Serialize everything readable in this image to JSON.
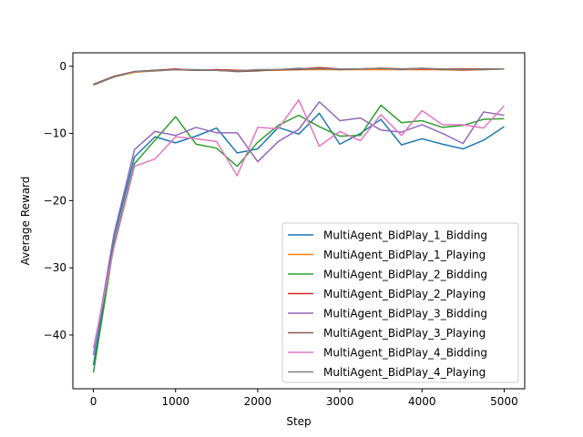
{
  "chart_data": {
    "type": "line",
    "title": "",
    "xlabel": "Step",
    "ylabel": "Average Reward",
    "xlim": [
      -250,
      5250
    ],
    "ylim": [
      -48,
      2
    ],
    "xticks": [
      0,
      1000,
      2000,
      3000,
      4000,
      5000
    ],
    "yticks": [
      -40,
      -30,
      -20,
      -10,
      0
    ],
    "grid": false,
    "legend_position": "lower right",
    "x": [
      0,
      250,
      500,
      750,
      1000,
      1250,
      1500,
      1750,
      2000,
      2250,
      2500,
      2750,
      3000,
      3250,
      3500,
      3750,
      4000,
      4250,
      4500,
      4750,
      5000
    ],
    "series": [
      {
        "name": "MultiAgent_BidPlay_1_Bidding",
        "color": "#1f77b4",
        "values": [
          -44.5,
          -25.5,
          -13.5,
          -10.5,
          -11.4,
          -10.4,
          -9.2,
          -12.9,
          -12.3,
          -9.1,
          -10.1,
          -7.0,
          -11.6,
          -10.0,
          -7.9,
          -11.7,
          -10.8,
          -11.6,
          -12.3,
          -11.0,
          -9.0
        ]
      },
      {
        "name": "MultiAgent_BidPlay_1_Playing",
        "color": "#ff7f0e",
        "values": [
          -2.8,
          -1.6,
          -0.9,
          -0.7,
          -0.5,
          -0.6,
          -0.6,
          -0.7,
          -0.6,
          -0.6,
          -0.5,
          -0.5,
          -0.5,
          -0.5,
          -0.5,
          -0.5,
          -0.5,
          -0.5,
          -0.6,
          -0.5,
          -0.4
        ]
      },
      {
        "name": "MultiAgent_BidPlay_2_Bidding",
        "color": "#2ca02c",
        "values": [
          -45.6,
          -26.5,
          -14.5,
          -11.0,
          -7.5,
          -11.6,
          -12.2,
          -14.9,
          -11.3,
          -8.8,
          -7.3,
          -9.0,
          -10.4,
          -10.3,
          -5.8,
          -8.4,
          -8.1,
          -9.1,
          -8.8,
          -7.9,
          -7.8
        ]
      },
      {
        "name": "MultiAgent_BidPlay_2_Playing",
        "color": "#d62728",
        "values": [
          -2.7,
          -1.5,
          -0.8,
          -0.6,
          -0.4,
          -0.6,
          -0.5,
          -0.6,
          -0.6,
          -0.5,
          -0.4,
          -0.2,
          -0.4,
          -0.4,
          -0.3,
          -0.4,
          -0.4,
          -0.4,
          -0.4,
          -0.4,
          -0.4
        ]
      },
      {
        "name": "MultiAgent_BidPlay_3_Bidding",
        "color": "#9467bd",
        "values": [
          -43.0,
          -25.0,
          -12.4,
          -9.7,
          -10.3,
          -9.1,
          -9.9,
          -9.9,
          -14.2,
          -11.2,
          -9.4,
          -5.3,
          -8.1,
          -7.7,
          -9.5,
          -9.8,
          -8.7,
          -10.0,
          -11.5,
          -6.8,
          -7.3
        ]
      },
      {
        "name": "MultiAgent_BidPlay_3_Playing",
        "color": "#8c564b",
        "values": [
          -2.7,
          -1.5,
          -0.8,
          -0.6,
          -0.5,
          -0.6,
          -0.6,
          -0.8,
          -0.7,
          -0.5,
          -0.5,
          -0.3,
          -0.5,
          -0.4,
          -0.3,
          -0.4,
          -0.3,
          -0.5,
          -0.5,
          -0.4,
          -0.4
        ]
      },
      {
        "name": "MultiAgent_BidPlay_4_Bidding",
        "color": "#e377c2",
        "values": [
          -42.0,
          -27.0,
          -14.9,
          -13.8,
          -10.5,
          -10.8,
          -11.2,
          -16.3,
          -9.1,
          -9.3,
          -5.0,
          -11.9,
          -9.7,
          -11.1,
          -7.2,
          -10.3,
          -6.6,
          -8.7,
          -8.7,
          -9.2,
          -5.9
        ]
      },
      {
        "name": "MultiAgent_BidPlay_4_Playing",
        "color": "#7f7f7f",
        "values": [
          -2.8,
          -1.6,
          -0.8,
          -0.7,
          -0.5,
          -0.5,
          -0.6,
          -0.7,
          -0.5,
          -0.5,
          -0.3,
          -0.4,
          -0.4,
          -0.4,
          -0.3,
          -0.5,
          -0.3,
          -0.4,
          -0.5,
          -0.5,
          -0.4
        ]
      }
    ]
  }
}
